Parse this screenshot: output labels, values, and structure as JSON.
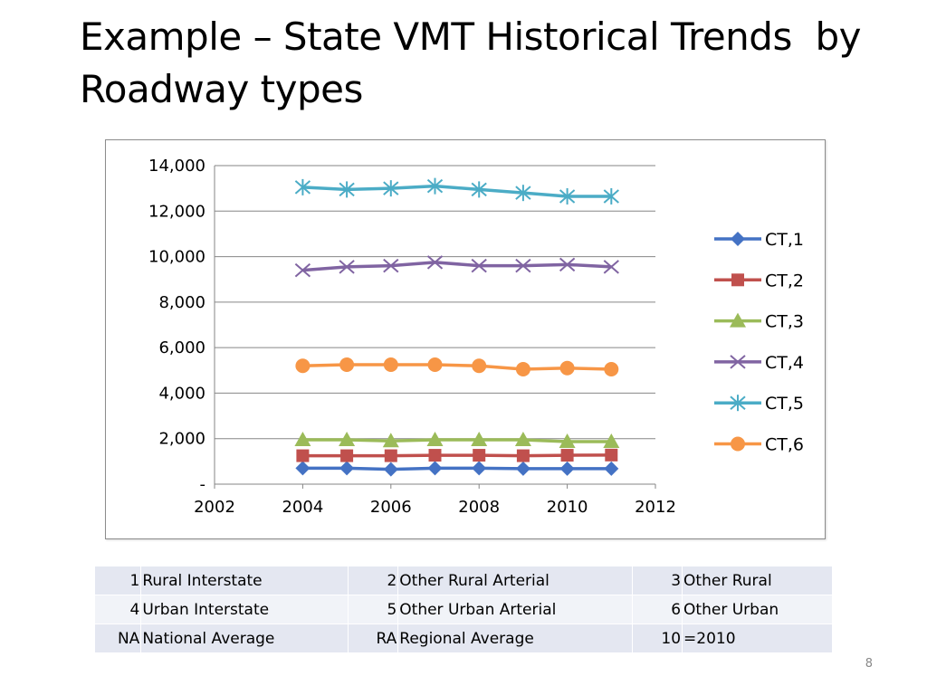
{
  "slide": {
    "title": "Example – State VMT Historical Trends  by Roadway types",
    "page_number": "8"
  },
  "chart_data": {
    "type": "line",
    "x": [
      2004,
      2005,
      2006,
      2007,
      2008,
      2009,
      2010,
      2011
    ],
    "xlim": [
      2002,
      2012
    ],
    "ylim": [
      0,
      14000
    ],
    "x_ticks": [
      2002,
      2004,
      2006,
      2008,
      2010,
      2012
    ],
    "y_ticks": [
      0,
      2000,
      4000,
      6000,
      8000,
      10000,
      12000,
      14000
    ],
    "y_tick_labels": [
      "-",
      "2,000",
      "4,000",
      "6,000",
      "8,000",
      "10,000",
      "12,000",
      "14,000"
    ],
    "grid": "horizontal",
    "legend_position": "right",
    "series": [
      {
        "name": "CT,1",
        "color": "#4472c4",
        "marker": "diamond",
        "values": [
          700,
          700,
          650,
          700,
          700,
          680,
          680,
          680
        ]
      },
      {
        "name": "CT,2",
        "color": "#c0504d",
        "marker": "square",
        "values": [
          1250,
          1250,
          1250,
          1270,
          1270,
          1250,
          1270,
          1280
        ]
      },
      {
        "name": "CT,3",
        "color": "#9bbb59",
        "marker": "triangle",
        "values": [
          1950,
          1950,
          1900,
          1950,
          1950,
          1950,
          1870,
          1870
        ]
      },
      {
        "name": "CT,4",
        "color": "#8064a2",
        "marker": "x",
        "values": [
          9400,
          9550,
          9600,
          9750,
          9600,
          9600,
          9650,
          9550
        ]
      },
      {
        "name": "CT,5",
        "color": "#4bacc6",
        "marker": "star",
        "values": [
          13050,
          12950,
          13000,
          13100,
          12950,
          12800,
          12650,
          12650
        ]
      },
      {
        "name": "CT,6",
        "color": "#f79646",
        "marker": "circle",
        "values": [
          5200,
          5250,
          5250,
          5250,
          5200,
          5050,
          5100,
          5050
        ]
      }
    ]
  },
  "key_table": {
    "rows": [
      [
        {
          "code": "1",
          "name": "Rural Interstate"
        },
        {
          "code": "2",
          "name": "Other Rural Arterial"
        },
        {
          "code": "3",
          "name": "Other Rural"
        }
      ],
      [
        {
          "code": "4",
          "name": "Urban Interstate"
        },
        {
          "code": "5",
          "name": "Other Urban Arterial"
        },
        {
          "code": "6",
          "name": "Other Urban"
        }
      ],
      [
        {
          "code": "NA",
          "name": "National Average"
        },
        {
          "code": "RA",
          "name": "Regional Average"
        },
        {
          "code": "10",
          "name": "=2010"
        }
      ]
    ]
  }
}
